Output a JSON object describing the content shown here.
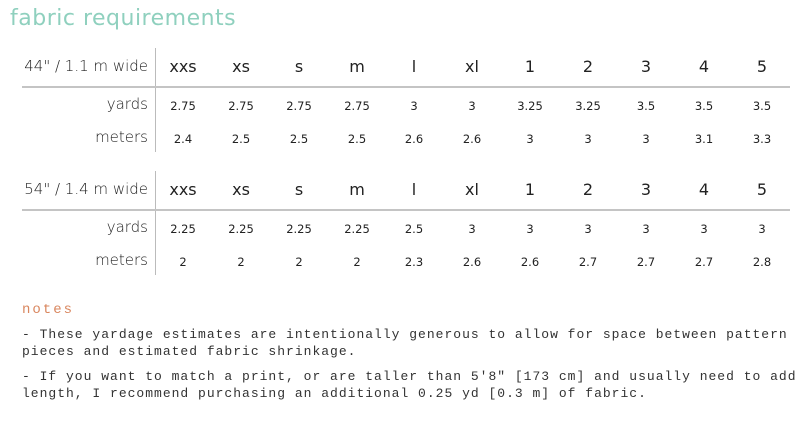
{
  "title": "fabric requirements",
  "colors": {
    "title": "#8fd0be",
    "notes_heading": "#d9865e",
    "text": "#222222",
    "rule": "#c4c4c4"
  },
  "sizes": [
    "xxs",
    "xs",
    "s",
    "m",
    "l",
    "xl",
    "1",
    "2",
    "3",
    "4",
    "5"
  ],
  "tables": [
    {
      "width_label": "44\" / 1.1 m wide",
      "rows": [
        {
          "label": "yards",
          "values": [
            "2.75",
            "2.75",
            "2.75",
            "2.75",
            "3",
            "3",
            "3.25",
            "3.25",
            "3.5",
            "3.5",
            "3.5"
          ]
        },
        {
          "label": "meters",
          "values": [
            "2.4",
            "2.5",
            "2.5",
            "2.5",
            "2.6",
            "2.6",
            "3",
            "3",
            "3",
            "3.1",
            "3.3"
          ]
        }
      ]
    },
    {
      "width_label": "54\" / 1.4 m wide",
      "rows": [
        {
          "label": "yards",
          "values": [
            "2.25",
            "2.25",
            "2.25",
            "2.25",
            "2.5",
            "3",
            "3",
            "3",
            "3",
            "3",
            "3"
          ]
        },
        {
          "label": "meters",
          "values": [
            "2",
            "2",
            "2",
            "2",
            "2.3",
            "2.6",
            "2.6",
            "2.7",
            "2.7",
            "2.7",
            "2.8"
          ]
        }
      ]
    }
  ],
  "notes": {
    "heading": "notes",
    "items": [
      "- These yardage estimates are intentionally generous to allow for space between pattern pieces and estimated fabric shrinkage.",
      "- If you want to match a print, or are taller than 5'8\" [173 cm] and usually need to add length, I recommend purchasing an additional 0.25 yd [0.3 m] of fabric."
    ]
  }
}
